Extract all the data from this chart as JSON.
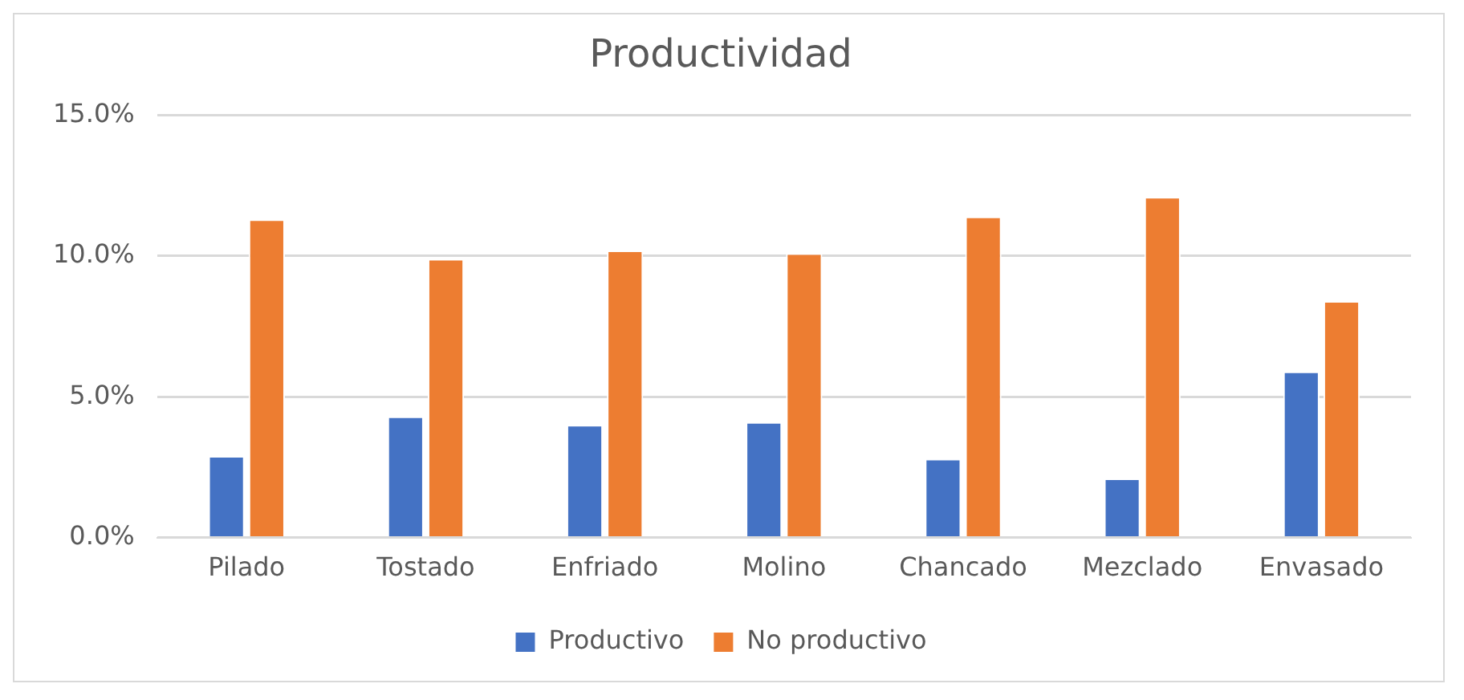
{
  "chart_data": {
    "type": "bar",
    "title": "Productividad",
    "categories": [
      "Pilado",
      "Tostado",
      "Enfriado",
      "Molino",
      "Chancado",
      "Mezclado",
      "Envasado"
    ],
    "series": [
      {
        "name": "Productivo",
        "color": "#4472c4",
        "values": [
          2.9,
          4.3,
          4.0,
          4.1,
          2.8,
          2.1,
          5.9
        ]
      },
      {
        "name": "No productivo",
        "color": "#ed7d31",
        "values": [
          11.3,
          9.9,
          10.2,
          10.1,
          11.4,
          12.1,
          8.4
        ]
      }
    ],
    "ylim": [
      0,
      15
    ],
    "yticks": [
      {
        "value": 0,
        "label": "0.0%"
      },
      {
        "value": 5,
        "label": "5.0%"
      },
      {
        "value": 10,
        "label": "10.0%"
      },
      {
        "value": 15,
        "label": "15.0%"
      }
    ],
    "grid": "y",
    "legend": "bottom"
  }
}
